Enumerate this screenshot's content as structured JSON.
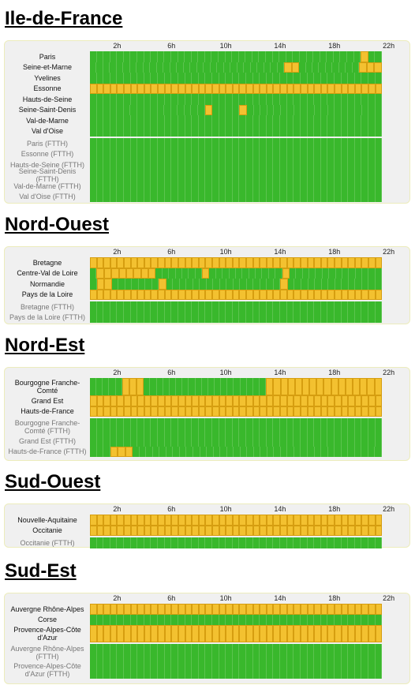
{
  "hour_labels": [
    "2h",
    "6h",
    "10h",
    "14h",
    "18h",
    "22h"
  ],
  "colors": {
    "ok": "#39b82c",
    "degraded": "#f3c130"
  },
  "regions": [
    {
      "title": "Ile-de-France",
      "groups": [
        [
          {
            "label": "Paris",
            "ftth": false,
            "flags": [
              40
            ]
          },
          {
            "label": "Seine-et-Marne",
            "ftth": false,
            "flags": [
              29,
              30,
              40,
              41,
              42
            ]
          },
          {
            "label": "Yvelines",
            "ftth": false,
            "flags": []
          },
          {
            "label": "Essonne",
            "ftth": false,
            "flags": "all"
          },
          {
            "label": "Hauts-de-Seine",
            "ftth": false,
            "flags": []
          },
          {
            "label": "Seine-Saint-Denis",
            "ftth": false,
            "flags": [
              17,
              22
            ]
          },
          {
            "label": "Val-de-Marne",
            "ftth": false,
            "flags": []
          },
          {
            "label": "Val d'Oise",
            "ftth": false,
            "flags": []
          }
        ],
        [
          {
            "label": "Paris (FTTH)",
            "ftth": true,
            "flags": []
          },
          {
            "label": "Essonne (FTTH)",
            "ftth": true,
            "flags": []
          },
          {
            "label": "Hauts-de-Seine (FTTH)",
            "ftth": true,
            "flags": []
          },
          {
            "label": "Seine-Saint-Denis (FTTH)",
            "ftth": true,
            "flags": []
          },
          {
            "label": "Val-de-Marne (FTTH)",
            "ftth": true,
            "flags": []
          },
          {
            "label": "Val d'Oise (FTTH)",
            "ftth": true,
            "flags": []
          }
        ]
      ]
    },
    {
      "title": "Nord-Ouest",
      "groups": [
        [
          {
            "label": "Bretagne",
            "ftth": false,
            "flags": "all"
          },
          {
            "label": "Centre-Val de Loire",
            "ftth": false,
            "flags": [
              1,
              2,
              3,
              4,
              5,
              6,
              7,
              8,
              16,
              28
            ]
          },
          {
            "label": "Normandie",
            "ftth": false,
            "flags": [
              1,
              2,
              10,
              28
            ]
          },
          {
            "label": "Pays de la Loire",
            "ftth": false,
            "flags": "all"
          }
        ],
        [
          {
            "label": "Bretagne (FTTH)",
            "ftth": true,
            "flags": []
          },
          {
            "label": "Pays de la Loire (FTTH)",
            "ftth": true,
            "flags": []
          }
        ]
      ]
    },
    {
      "title": "Nord-Est",
      "groups": [
        [
          {
            "label": "Bourgogne Franche-Comté",
            "ftth": false,
            "two": true,
            "flags": [
              5,
              6,
              7,
              27,
              28,
              29,
              30,
              31,
              32,
              33,
              34,
              35,
              36,
              37,
              38,
              39,
              40,
              41,
              42
            ]
          },
          {
            "label": "Grand Est",
            "ftth": false,
            "flags": "all"
          },
          {
            "label": "Hauts-de-France",
            "ftth": false,
            "flags": "all"
          }
        ],
        [
          {
            "label": "Bourgogne Franche-Comté (FTTH)",
            "ftth": true,
            "two": true,
            "flags": []
          },
          {
            "label": "Grand Est (FTTH)",
            "ftth": true,
            "flags": []
          },
          {
            "label": "Hauts-de-France (FTTH)",
            "ftth": true,
            "flags": [
              3,
              4,
              5
            ]
          }
        ]
      ]
    },
    {
      "title": "Sud-Ouest",
      "groups": [
        [
          {
            "label": "Nouvelle-Aquitaine",
            "ftth": false,
            "flags": "all"
          },
          {
            "label": "Occitanie",
            "ftth": false,
            "flags": "all"
          }
        ],
        [
          {
            "label": "Occitanie (FTTH)",
            "ftth": true,
            "flags": []
          }
        ]
      ]
    },
    {
      "title": "Sud-Est",
      "groups": [
        [
          {
            "label": "Auvergne Rhône-Alpes",
            "ftth": false,
            "flags": "all"
          },
          {
            "label": "Corse",
            "ftth": false,
            "flags": []
          },
          {
            "label": "Provence-Alpes-Côte d'Azur",
            "ftth": false,
            "two": true,
            "flags": "all"
          }
        ],
        [
          {
            "label": "Auvergne Rhône-Alpes (FTTH)",
            "ftth": true,
            "two": true,
            "flags": []
          },
          {
            "label": "Provence-Alpes-Côte d'Azur (FTTH)",
            "ftth": true,
            "two": true,
            "flags": []
          }
        ]
      ]
    }
  ]
}
